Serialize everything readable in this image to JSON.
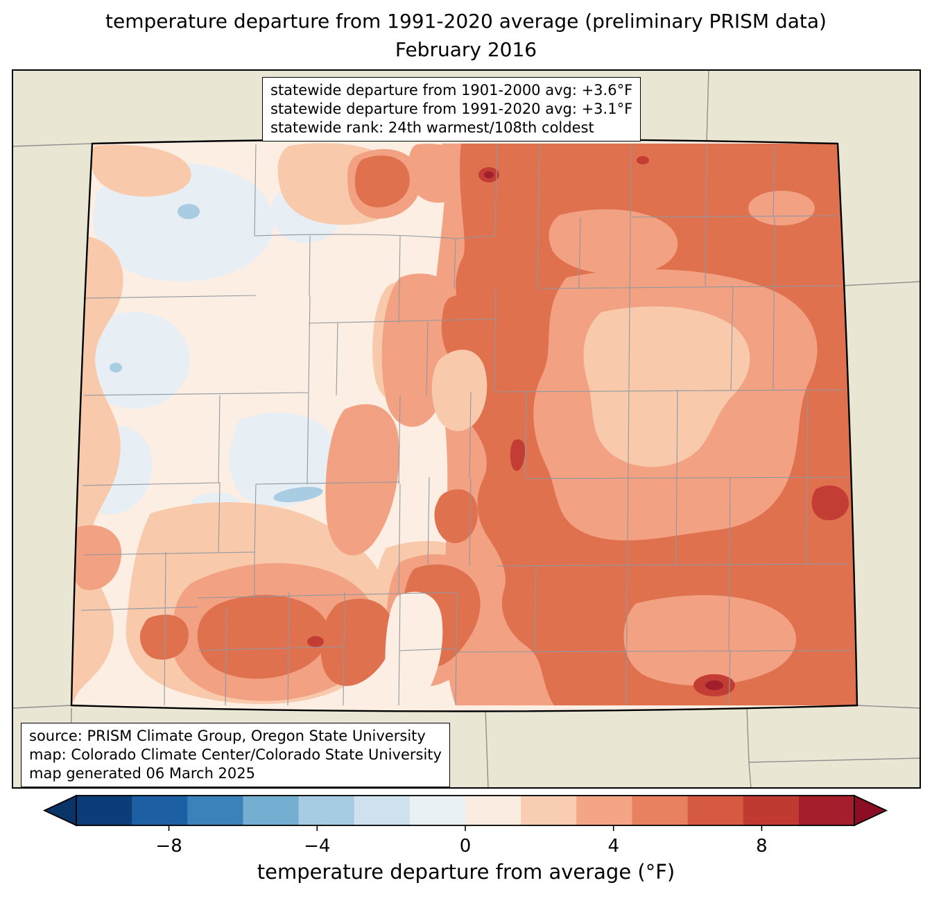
{
  "title": {
    "line1": "temperature departure from 1991-2020 average (preliminary PRISM data)",
    "line2": "February 2016"
  },
  "stats_box": {
    "line1": "statewide departure from 1901-2000 avg: +3.6°F",
    "line2": "statewide departure from 1991-2020 avg: +3.1°F",
    "line3": "statewide rank: 24th warmest/108th coldest"
  },
  "credits_box": {
    "line1": "source: PRISM Climate Group, Oregon State University",
    "line2": "map: Colorado Climate Center/Colorado State University",
    "line3": "map generated 06 March 2025"
  },
  "colorbar": {
    "label": "temperature departure from average (°F)",
    "vmin": -10.5,
    "vmax": 10.5,
    "segment_colors": [
      "#0d3d79",
      "#1d5fa3",
      "#3b82ba",
      "#74aed1",
      "#a6cbe2",
      "#cfe1ee",
      "#eaf1f5",
      "#fbece1",
      "#f9cdb4",
      "#f4a585",
      "#e8815f",
      "#d65a42",
      "#c13a32",
      "#a51e2c"
    ],
    "arrow_left_color": "#0a3367",
    "arrow_right_color": "#8c0e24",
    "ticks": [
      {
        "value": -8,
        "label": "−8"
      },
      {
        "value": -4,
        "label": "−4"
      },
      {
        "value": 0,
        "label": "0"
      },
      {
        "value": 4,
        "label": "4"
      },
      {
        "value": 8,
        "label": "8"
      }
    ]
  },
  "palette": {
    "outside": "#e9e7d4",
    "c0": "#fdeee3",
    "c1": "#f9c9ab",
    "c2": "#f2a183",
    "c3": "#e0714f",
    "c4": "#c33d35",
    "c5": "#a11f2d",
    "b0": "#e7eff5",
    "b1": "#a8cce2",
    "county_line": "#8f97a0",
    "neighbor_line": "#8f8f8f",
    "state_line": "#000000"
  },
  "chart_data": {
    "type": "choropleth_map",
    "region": "Colorado (with county boundaries and neighboring state borders)",
    "title": "temperature departure from 1991-2020 average (preliminary PRISM data)",
    "subtitle": "February 2016",
    "variable": "temperature departure from average (°F)",
    "colorbar_tick_values": [
      -8,
      -4,
      0,
      4,
      8
    ],
    "colorbar_range_f": [
      -10.5,
      10.5
    ],
    "statewide_departure_from_1901_2000_avg_f": 3.6,
    "statewide_departure_from_1991_2020_avg_f": 3.1,
    "statewide_rank": "24th warmest/108th coldest",
    "pattern_summary": "Eastern plains +3 to +6°F (darkest salmon/red along eastern border and foothills), central-east plains +2 to +3°F, western valleys 0 to +2°F with small pockets of -1 to -3°F (pale blue) in the northwest and central-west mountains, dark red spots exceeding +6°F near the northern border, eastern border, and southeast."
  }
}
